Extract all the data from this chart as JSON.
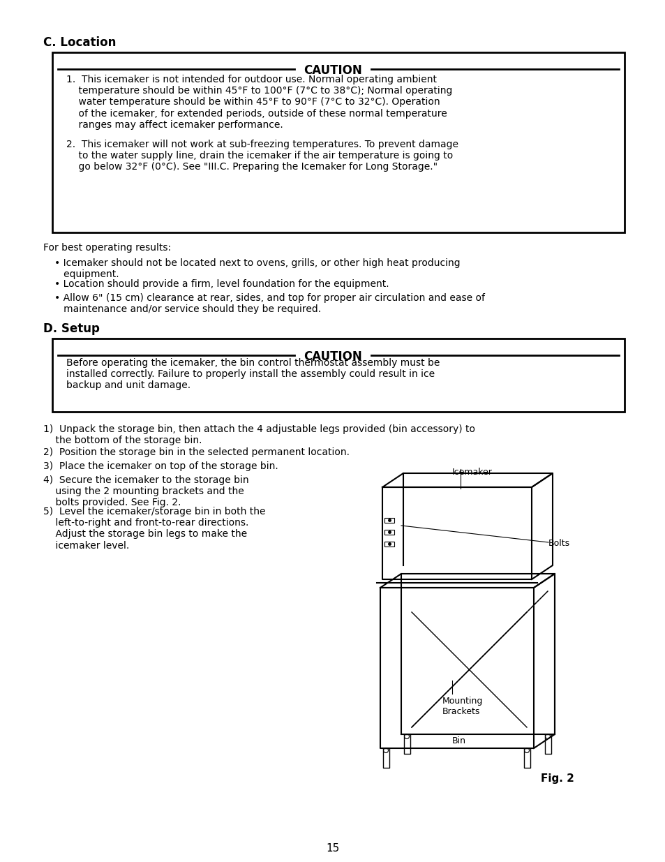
{
  "background_color": "#ffffff",
  "page_number": "15",
  "section_c_title": "C. Location",
  "section_d_title": "D. Setup",
  "caution_title": "CAUTION",
  "caution1_item1": "1.  This icemaker is not intended for outdoor use. Normal operating ambient\n    temperature should be within 45°F to 100°F (7°C to 38°C); Normal operating\n    water temperature should be within 45°F to 90°F (7°C to 32°C). Operation\n    of the icemaker, for extended periods, outside of these normal temperature\n    ranges may affect icemaker performance.",
  "caution1_item2": "2.  This icemaker will not work at sub-freezing temperatures. To prevent damage\n    to the water supply line, drain the icemaker if the air temperature is going to\n    go below 32°F (0°C). See \"III.C. Preparing the Icemaker for Long Storage.\"",
  "for_best": "For best operating results:",
  "bullet1": "• Icemaker should not be located next to ovens, grills, or other high heat producing\n   equipment.",
  "bullet2": "• Location should provide a firm, level foundation for the equipment.",
  "bullet3": "• Allow 6\" (15 cm) clearance at rear, sides, and top for proper air circulation and ease of\n   maintenance and/or service should they be required.",
  "caution2_text": "Before operating the icemaker, the bin control thermostat assembly must be\ninstalled correctly. Failure to properly install the assembly could result in ice\nbackup and unit damage.",
  "step1": "1)  Unpack the storage bin, then attach the 4 adjustable legs provided (bin accessory) to\n    the bottom of the storage bin.",
  "step2": "2)  Position the storage bin in the selected permanent location.",
  "step3": "3)  Place the icemaker on top of the storage bin.",
  "step4": "4)  Secure the icemaker to the storage bin\n    using the 2 mounting brackets and the\n    bolts provided. See Fig. 2.",
  "step5": "5)  Level the icemaker/storage bin in both the\n    left-to-right and front-to-rear directions.\n    Adjust the storage bin legs to make the\n    icemaker level.",
  "fig_label": "Fig. 2",
  "label_icemaker": "Icemaker",
  "label_bolts": "Bolts",
  "label_mounting": "Mounting\nBrackets",
  "label_bin": "Bin"
}
